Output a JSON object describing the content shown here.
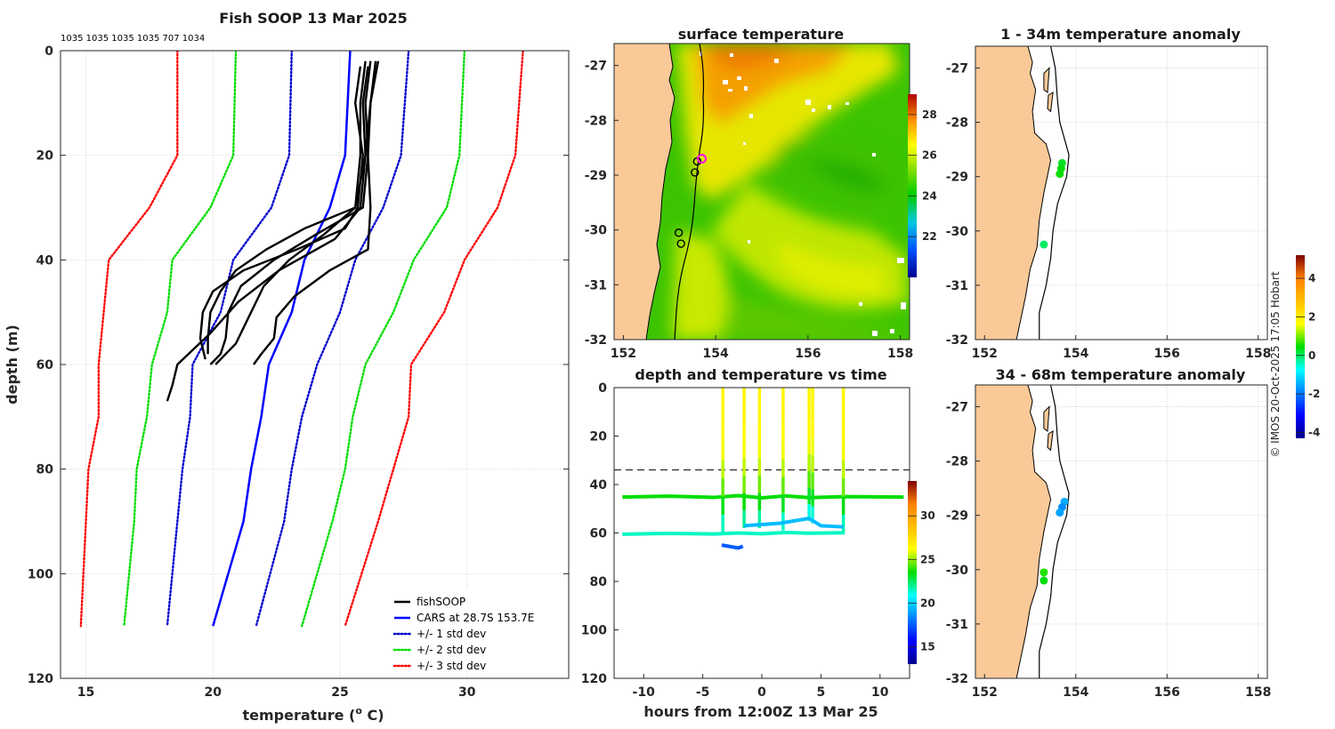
{
  "credit": "© IMOS 20-Oct-2025 17:05 Hobart",
  "colors": {
    "profile": "#000000",
    "cars": "#0000ff",
    "std1": "#0000cc",
    "std2": "#00dd00",
    "std3": "#ff0000",
    "land": "#f9c998",
    "coast": "#000000"
  },
  "chart_data": [
    {
      "id": "profile",
      "type": "line",
      "title": "Fish SOOP 13 Mar 2025",
      "subtitle": "1035 1035 1035 1035 707 1034",
      "xlabel": "temperature (o C)",
      "xlabel_main": "temperature (",
      "xlabel_sup": "o",
      "xlabel_tail": " C)",
      "ylabel": "depth (m)",
      "xlim": [
        14,
        34
      ],
      "ylim": [
        0,
        120
      ],
      "y_reversed": true,
      "xticks": [
        15,
        20,
        25,
        30
      ],
      "yticks": [
        0,
        20,
        40,
        60,
        80,
        100,
        120
      ],
      "grid": true,
      "legend_position": "bottom-right",
      "legend": [
        {
          "label": "fishSOOP",
          "color": "#000000",
          "style": "solid"
        },
        {
          "label": "CARS at 28.7S 153.7E",
          "color": "#0000ff",
          "style": "solid"
        },
        {
          "label": "+/- 1 std dev",
          "color": "#0000cc",
          "style": "dotted"
        },
        {
          "label": "+/- 2 std dev",
          "color": "#00dd00",
          "style": "dotted"
        },
        {
          "label": "+/- 3 std dev",
          "color": "#ff0000",
          "style": "dotted"
        }
      ],
      "cars_depths": [
        0,
        20,
        30,
        40,
        50,
        60,
        70,
        80,
        90,
        110
      ],
      "cars_mean": [
        25.4,
        25.2,
        24.6,
        23.6,
        23.1,
        22.2,
        21.9,
        21.5,
        21.2,
        20.0
      ],
      "std_curves": [
        {
          "sigma": -3,
          "color": "#ff0000",
          "values": [
            18.6,
            18.6,
            17.5,
            15.9,
            15.7,
            15.5,
            15.5,
            15.1,
            15.0,
            14.8
          ]
        },
        {
          "sigma": -2,
          "color": "#00dd00",
          "values": [
            20.9,
            20.8,
            19.9,
            18.4,
            18.2,
            17.6,
            17.4,
            17.0,
            16.9,
            16.5
          ]
        },
        {
          "sigma": -1,
          "color": "#0000cc",
          "values": [
            23.1,
            23.0,
            22.3,
            20.8,
            20.3,
            19.2,
            19.1,
            18.8,
            18.6,
            18.2
          ]
        },
        {
          "sigma": 1,
          "color": "#0000cc",
          "values": [
            27.7,
            27.4,
            26.7,
            25.6,
            25.0,
            24.1,
            23.5,
            23.1,
            22.8,
            21.7
          ]
        },
        {
          "sigma": 2,
          "color": "#00dd00",
          "values": [
            29.9,
            29.7,
            29.2,
            27.9,
            27.1,
            26.0,
            25.5,
            25.2,
            24.7,
            23.5
          ]
        },
        {
          "sigma": 3,
          "color": "#ff0000",
          "values": [
            32.2,
            31.9,
            31.2,
            29.9,
            29.1,
            27.8,
            27.7,
            27.1,
            26.5,
            25.2
          ]
        }
      ],
      "fishsoop_profiles": [
        {
          "depths": [
            2,
            10,
            20,
            30,
            35,
            40,
            45,
            50,
            55,
            58,
            60
          ],
          "temps": [
            26.4,
            26.2,
            26.1,
            25.9,
            24.1,
            22.4,
            21.1,
            20.6,
            20.5,
            20.3,
            19.9
          ]
        },
        {
          "depths": [
            2,
            10,
            20,
            30,
            34,
            38,
            42,
            46,
            50,
            55,
            58
          ],
          "temps": [
            26.0,
            25.8,
            25.8,
            25.6,
            23.6,
            22.1,
            20.9,
            20.3,
            19.9,
            19.8,
            19.8
          ]
        },
        {
          "depths": [
            2,
            10,
            20,
            30,
            36,
            42,
            48,
            54,
            60,
            64,
            67
          ],
          "temps": [
            26.5,
            26.2,
            26.0,
            25.8,
            24.8,
            22.6,
            21.0,
            19.9,
            18.6,
            18.4,
            18.2
          ]
        },
        {
          "depths": [
            3,
            10,
            20,
            30,
            34,
            38,
            42,
            46,
            50,
            55,
            59
          ],
          "temps": [
            25.8,
            25.6,
            25.9,
            25.7,
            25.2,
            23.3,
            21.2,
            20.0,
            19.6,
            19.5,
            19.7
          ]
        },
        {
          "depths": [
            2,
            10,
            20,
            30,
            38,
            42,
            47,
            51,
            55,
            58,
            60
          ],
          "temps": [
            26.2,
            26.0,
            26.1,
            26.2,
            26.1,
            24.6,
            23.2,
            22.5,
            22.4,
            21.9,
            21.6
          ]
        },
        {
          "depths": [
            3,
            10,
            20,
            30,
            35,
            40,
            45,
            50,
            56,
            60
          ],
          "temps": [
            26.1,
            25.9,
            26.0,
            25.6,
            24.4,
            23.0,
            22.0,
            21.5,
            20.9,
            20.1
          ]
        }
      ]
    },
    {
      "id": "sst",
      "type": "heatmap",
      "title": "surface temperature",
      "xlim": [
        151.8,
        158.2
      ],
      "ylim": [
        -32,
        -26.6
      ],
      "xticks": [
        152,
        154,
        156,
        158
      ],
      "yticks": [
        -27,
        -28,
        -29,
        -30,
        -31,
        -32
      ],
      "colorbar_range": [
        20,
        29
      ],
      "colorbar_ticks": [
        22,
        24,
        26,
        28
      ],
      "vessel_positions": [
        [
          153.6,
          -28.75
        ],
        [
          153.55,
          -28.95
        ],
        [
          153.2,
          -30.05
        ],
        [
          153.25,
          -30.25
        ]
      ],
      "current_position": [
        153.7,
        -28.7
      ]
    },
    {
      "id": "anomaly_shallow",
      "type": "scatter",
      "title": "1 - 34m temperature anomaly",
      "xlim": [
        151.8,
        158.2
      ],
      "ylim": [
        -32,
        -26.6
      ],
      "xticks": [
        152,
        154,
        156,
        158
      ],
      "yticks": [
        -27,
        -28,
        -29,
        -30,
        -31,
        -32
      ],
      "points": [
        {
          "lon": 153.7,
          "lat": -28.75,
          "anom": 0.3
        },
        {
          "lon": 153.68,
          "lat": -28.85,
          "anom": 0.4
        },
        {
          "lon": 153.65,
          "lat": -28.95,
          "anom": 0.5
        },
        {
          "lon": 153.3,
          "lat": -30.25,
          "anom": 0.0
        }
      ]
    },
    {
      "id": "anomaly_deep",
      "type": "scatter",
      "title": "34 - 68m temperature anomaly",
      "xlim": [
        151.8,
        158.2
      ],
      "ylim": [
        -32,
        -26.6
      ],
      "xticks": [
        152,
        154,
        156,
        158
      ],
      "yticks": [
        -27,
        -28,
        -29,
        -30,
        -31,
        -32
      ],
      "points": [
        {
          "lon": 153.75,
          "lat": -28.75,
          "anom": -1.5
        },
        {
          "lon": 153.7,
          "lat": -28.85,
          "anom": -1.8
        },
        {
          "lon": 153.65,
          "lat": -28.95,
          "anom": -1.6
        },
        {
          "lon": 153.3,
          "lat": -30.05,
          "anom": 0.6
        },
        {
          "lon": 153.3,
          "lat": -30.2,
          "anom": 0.4
        }
      ]
    },
    {
      "id": "anomaly_colorbar",
      "type": "heatmap",
      "colorbar_range": [
        -4.3,
        5.2
      ],
      "colorbar_ticks": [
        -4,
        -2,
        0,
        2,
        4
      ]
    },
    {
      "id": "timeseries",
      "type": "scatter",
      "title": "depth and temperature vs time",
      "xlabel": "hours from 12:00Z 13 Mar 25",
      "xlim": [
        -12.5,
        12.5
      ],
      "ylim": [
        0,
        120
      ],
      "y_reversed": true,
      "xticks": [
        -10,
        -5,
        0,
        5,
        10
      ],
      "yticks": [
        0,
        20,
        40,
        60,
        80,
        100,
        120
      ],
      "colorbar_range": [
        13,
        34
      ],
      "colorbar_ticks": [
        15,
        20,
        25,
        30
      ],
      "dashed_depth": 34,
      "bottom_tracks": [
        {
          "x": [
            -11.8,
            -8,
            -4,
            -2,
            0,
            2,
            4,
            7,
            12
          ],
          "depth": [
            45.2,
            44.8,
            45.3,
            44.6,
            45.5,
            44.7,
            45.4,
            45.0,
            45.2
          ],
          "temp": 23.5
        },
        {
          "x": [
            -11.8,
            -8,
            -4,
            -2,
            0,
            2,
            4,
            7
          ],
          "depth": [
            60.5,
            60.2,
            60.4,
            60.0,
            60.3,
            59.8,
            60.1,
            59.9
          ],
          "temp": 21.5
        }
      ],
      "casts": [
        {
          "x": -3.3,
          "max_depth": 60,
          "bottom_temp": 20.5
        },
        {
          "x": -1.5,
          "max_depth": 58,
          "bottom_temp": 21.0
        },
        {
          "x": -0.2,
          "max_depth": 58,
          "bottom_temp": 20.8
        },
        {
          "x": 1.8,
          "max_depth": 59,
          "bottom_temp": 20.3
        },
        {
          "x": 4.0,
          "max_depth": 55,
          "bottom_temp": 20.0
        },
        {
          "x": 4.3,
          "max_depth": 56,
          "bottom_temp": 20.2
        },
        {
          "x": 6.9,
          "max_depth": 60,
          "bottom_temp": 20.6
        }
      ],
      "low_segments": [
        {
          "x": [
            -3.4,
            -2.0,
            -1.6
          ],
          "depth": [
            65.0,
            66.2,
            65.5
          ],
          "temp": 17.5
        },
        {
          "x": [
            -1.5,
            1.5,
            4.0,
            5.0,
            6.9
          ],
          "depth": [
            57.0,
            56.0,
            54.0,
            57.0,
            57.5
          ],
          "temp": 19.5
        }
      ]
    }
  ]
}
